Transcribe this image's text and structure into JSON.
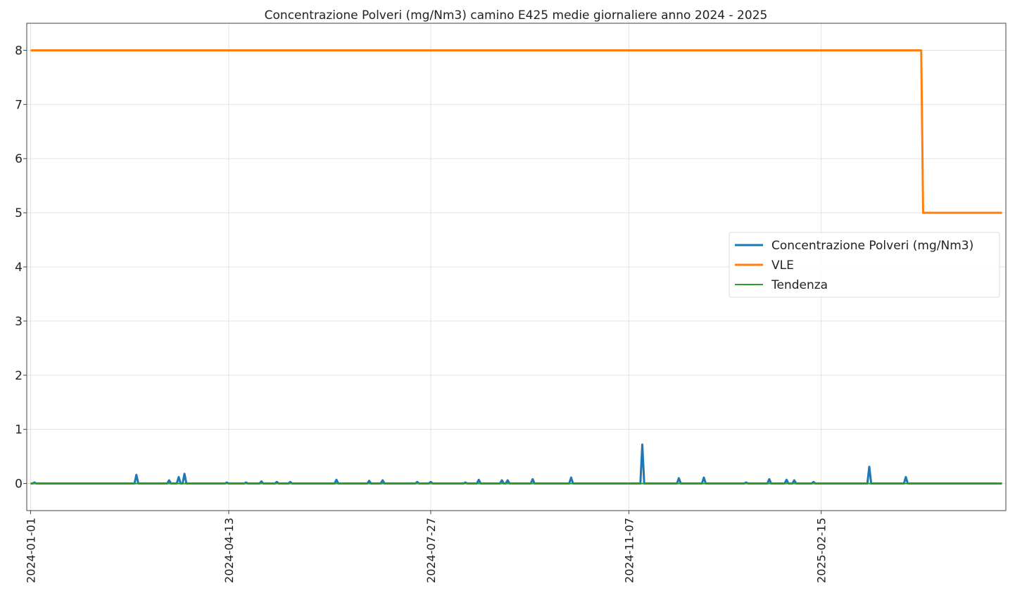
{
  "chart_data": {
    "type": "line",
    "title": "Concentrazione Polveri (mg/Nm3) camino E425 medie giornaliere anno 2024 - 2025",
    "xlabel": "",
    "ylabel": "",
    "x_type": "date",
    "xlim": [
      "2023-12-30",
      "2025-05-22"
    ],
    "ylim": [
      -0.5,
      8.5
    ],
    "yticks": [
      0,
      1,
      2,
      3,
      4,
      5,
      6,
      7,
      8
    ],
    "xticks": [
      "2024-01-01",
      "2024-04-13",
      "2024-07-27",
      "2024-11-07",
      "2025-02-15"
    ],
    "grid": true,
    "legend_position": "center-right",
    "series": [
      {
        "name": "Concentrazione Polveri (mg/Nm3)",
        "color": "#1f77b4",
        "kind": "daily",
        "baseline": 0,
        "x_start": "2024-01-01",
        "x_end": "2025-05-20",
        "spikes": [
          {
            "x": "2024-01-03",
            "y": 0.02
          },
          {
            "x": "2024-02-25",
            "y": 0.16
          },
          {
            "x": "2024-03-13",
            "y": 0.06
          },
          {
            "x": "2024-03-18",
            "y": 0.12
          },
          {
            "x": "2024-03-21",
            "y": 0.18
          },
          {
            "x": "2024-04-12",
            "y": 0.02
          },
          {
            "x": "2024-04-22",
            "y": 0.02
          },
          {
            "x": "2024-04-30",
            "y": 0.04
          },
          {
            "x": "2024-05-08",
            "y": 0.03
          },
          {
            "x": "2024-05-15",
            "y": 0.03
          },
          {
            "x": "2024-06-08",
            "y": 0.07
          },
          {
            "x": "2024-06-25",
            "y": 0.05
          },
          {
            "x": "2024-07-02",
            "y": 0.06
          },
          {
            "x": "2024-07-20",
            "y": 0.03
          },
          {
            "x": "2024-07-27",
            "y": 0.03
          },
          {
            "x": "2024-08-14",
            "y": 0.02
          },
          {
            "x": "2024-08-21",
            "y": 0.07
          },
          {
            "x": "2024-09-02",
            "y": 0.06
          },
          {
            "x": "2024-09-05",
            "y": 0.06
          },
          {
            "x": "2024-09-18",
            "y": 0.08
          },
          {
            "x": "2024-10-08",
            "y": 0.11
          },
          {
            "x": "2024-11-14",
            "y": 0.72
          },
          {
            "x": "2024-12-03",
            "y": 0.1
          },
          {
            "x": "2024-12-16",
            "y": 0.11
          },
          {
            "x": "2025-01-07",
            "y": 0.02
          },
          {
            "x": "2025-01-19",
            "y": 0.08
          },
          {
            "x": "2025-01-28",
            "y": 0.07
          },
          {
            "x": "2025-02-01",
            "y": 0.06
          },
          {
            "x": "2025-02-11",
            "y": 0.03
          },
          {
            "x": "2025-03-12",
            "y": 0.31
          },
          {
            "x": "2025-03-31",
            "y": 0.12
          }
        ]
      },
      {
        "name": "VLE",
        "color": "#ff7f0e",
        "kind": "step",
        "points": [
          {
            "x": "2024-01-01",
            "y": 8
          },
          {
            "x": "2025-04-08",
            "y": 8
          },
          {
            "x": "2025-04-09",
            "y": 5
          },
          {
            "x": "2025-05-20",
            "y": 5
          }
        ]
      },
      {
        "name": "Tendenza",
        "color": "#2ca02c",
        "kind": "line",
        "points": [
          {
            "x": "2024-01-01",
            "y": 0.0
          },
          {
            "x": "2025-05-20",
            "y": 0.0
          }
        ]
      }
    ]
  }
}
